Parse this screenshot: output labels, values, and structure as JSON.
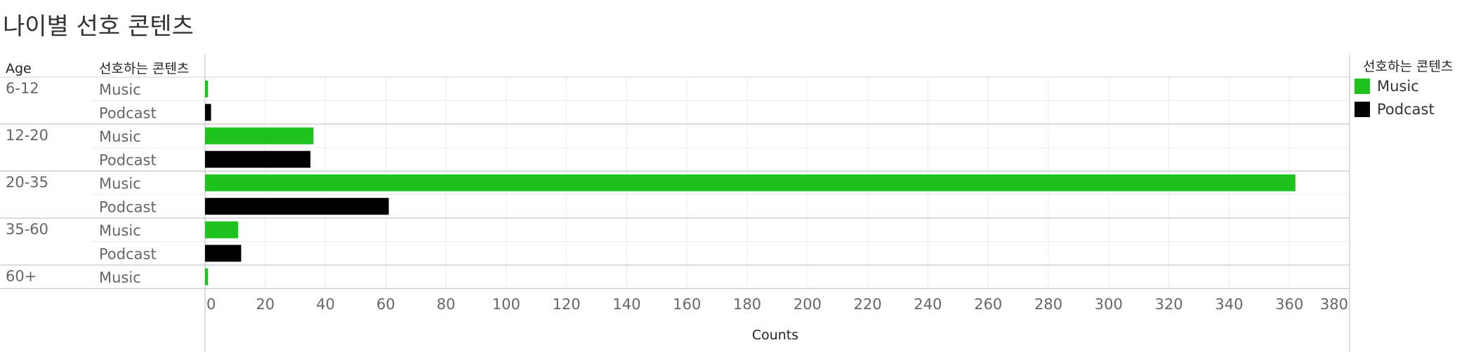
{
  "title": "나이별 선호 콘텐츠",
  "chart_data": {
    "type": "bar",
    "orientation": "horizontal",
    "title": "나이별 선호 콘텐츠",
    "row_headers": [
      "Age",
      "선호하는 콘텐츠"
    ],
    "xlabel": "Counts",
    "xlim": [
      0,
      380
    ],
    "xticks": [
      0,
      20,
      40,
      60,
      80,
      100,
      120,
      140,
      160,
      180,
      200,
      220,
      240,
      260,
      280,
      300,
      320,
      340,
      360,
      380
    ],
    "grid": true,
    "legend_position": "right",
    "legend": {
      "title": "선호하는 콘텐츠",
      "items": [
        {
          "label": "Music",
          "color": "#1ec31e"
        },
        {
          "label": "Podcast",
          "color": "#000000"
        }
      ]
    },
    "groups": [
      {
        "age": "6-12",
        "bars": [
          {
            "content": "Music",
            "value": 1
          },
          {
            "content": "Podcast",
            "value": 2
          }
        ]
      },
      {
        "age": "12-20",
        "bars": [
          {
            "content": "Music",
            "value": 36
          },
          {
            "content": "Podcast",
            "value": 35
          }
        ]
      },
      {
        "age": "20-35",
        "bars": [
          {
            "content": "Music",
            "value": 362
          },
          {
            "content": "Podcast",
            "value": 61
          }
        ]
      },
      {
        "age": "35-60",
        "bars": [
          {
            "content": "Music",
            "value": 11
          },
          {
            "content": "Podcast",
            "value": 12
          }
        ]
      },
      {
        "age": "60+",
        "bars": [
          {
            "content": "Music",
            "value": 1
          }
        ]
      }
    ]
  }
}
